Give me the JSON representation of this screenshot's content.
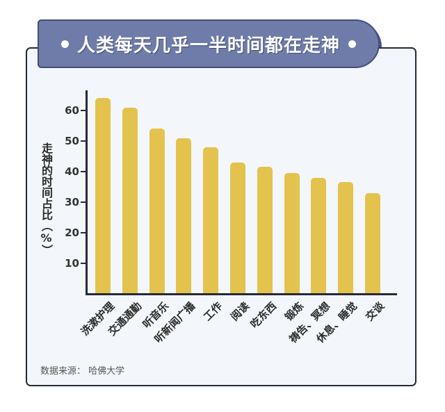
{
  "title": "人类每天几乎一半时间都在走神",
  "source_label": "数据来源：",
  "source_value": "哈佛大学",
  "colors": {
    "bar": "#E3C34D",
    "banner": "#6F7CA9",
    "banner_shadow": "#4B5682",
    "card_bg": "#F3F6FB",
    "axis": "#252A3A"
  },
  "chart_data": {
    "type": "bar",
    "title": "人类每天几乎一半时间都在走神",
    "xlabel": "",
    "ylabel": "走神的时间占比（%）",
    "ylim": [
      0,
      66
    ],
    "yticks": [
      10,
      20,
      30,
      40,
      50,
      60
    ],
    "grid": false,
    "legend": null,
    "categories": [
      "洗漱护理",
      "交通通勤",
      "听音乐",
      "听新闻广播",
      "工作",
      "阅读",
      "吃东西",
      "锻炼",
      "祷告、冥想",
      "休息、睡觉",
      "交谈"
    ],
    "values": [
      64,
      61,
      54,
      51,
      48,
      43,
      41.5,
      39.5,
      38,
      36.5,
      33
    ],
    "annotation": "数据来源： 哈佛大学"
  }
}
